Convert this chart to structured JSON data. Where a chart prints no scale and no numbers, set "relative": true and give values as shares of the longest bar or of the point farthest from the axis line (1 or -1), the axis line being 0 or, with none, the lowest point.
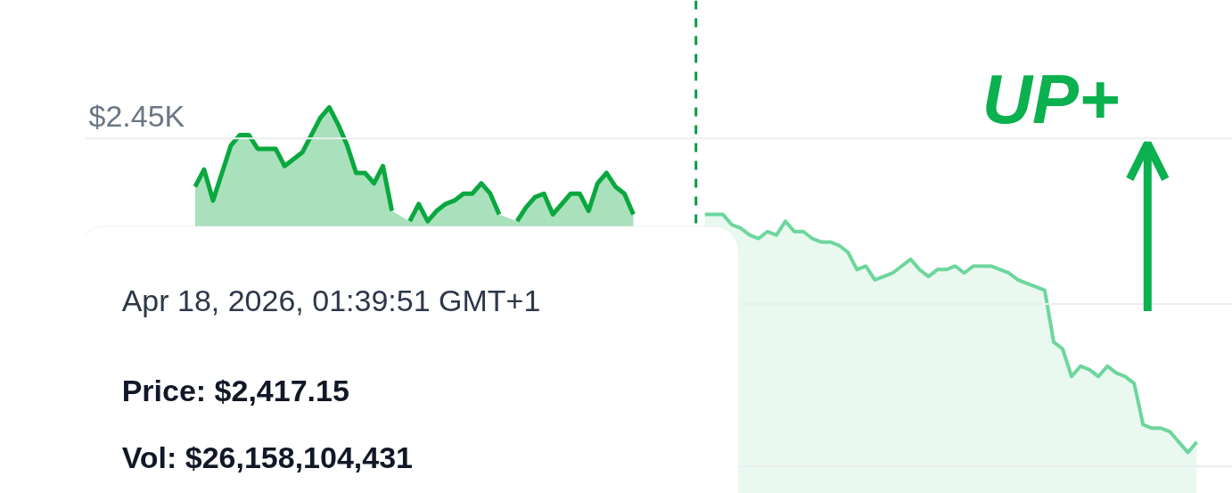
{
  "chart_data": {
    "type": "area",
    "categories": [
      null,
      null,
      null,
      null,
      null,
      null,
      null,
      null,
      null,
      null,
      null,
      null,
      null,
      null,
      null,
      null,
      null,
      null,
      null,
      null,
      null,
      null,
      null,
      null,
      null,
      null,
      null,
      null,
      null,
      null,
      null,
      null,
      null,
      null,
      null,
      null,
      null,
      null,
      null,
      null,
      null,
      null,
      null,
      null,
      null,
      null,
      null,
      null,
      null,
      null,
      null,
      null,
      null,
      null,
      null,
      null,
      null,
      null,
      null,
      null,
      null,
      null,
      null,
      null,
      null,
      null,
      null,
      null,
      null,
      null,
      null,
      null,
      null,
      null,
      null,
      null,
      null,
      null,
      null,
      null,
      null,
      null,
      null,
      null,
      null,
      null,
      null,
      null,
      null,
      null,
      null,
      null,
      null,
      null,
      null,
      null,
      null,
      null,
      null,
      null,
      null,
      null,
      null,
      null,
      null,
      null,
      null,
      null,
      null,
      null,
      null,
      null,
      null,
      null,
      null,
      null
    ],
    "relative": true,
    "series": [
      {
        "color": "#0aa83f",
        "values": [
          null,
          null,
          null,
          0.77,
          0.82,
          0.73,
          0.81,
          0.89,
          0.92,
          0.92,
          0.88,
          0.88,
          0.88,
          0.83,
          0.85,
          0.87,
          0.92,
          0.97,
          1,
          0.95,
          0.89,
          0.81,
          0.81,
          0.78,
          0.83,
          0.7,
          null,
          0.67,
          0.72,
          0.67,
          0.7,
          0.72,
          0.73,
          0.75,
          0.75,
          0.78,
          0.75,
          0.69,
          null,
          0.67,
          0.71,
          0.74,
          0.75,
          0.69,
          0.72,
          0.75,
          0.75,
          0.7,
          0.78,
          0.81,
          0.77,
          0.75,
          0.69,
          null,
          null,
          null,
          null,
          null,
          null,
          null,
          null,
          null,
          null,
          null,
          null,
          null,
          null,
          null,
          null,
          null,
          null,
          null,
          null,
          null,
          null,
          null,
          null,
          null,
          null,
          null,
          null,
          null,
          null,
          null,
          null,
          null,
          null,
          null,
          null,
          null,
          null,
          null,
          null,
          null,
          null,
          null,
          null,
          null,
          null,
          null,
          null,
          null,
          null,
          null,
          null,
          null,
          null,
          null,
          null,
          null,
          null,
          null,
          null,
          null,
          null,
          null
        ]
      },
      {
        "color": "#6dd69c",
        "values": [
          null,
          null,
          null,
          null,
          null,
          null,
          null,
          null,
          null,
          null,
          null,
          null,
          null,
          null,
          null,
          null,
          null,
          null,
          null,
          null,
          null,
          null,
          null,
          null,
          null,
          null,
          null,
          null,
          null,
          null,
          null,
          null,
          null,
          null,
          null,
          null,
          null,
          null,
          null,
          null,
          null,
          null,
          null,
          null,
          null,
          null,
          null,
          null,
          null,
          null,
          null,
          null,
          null,
          null,
          null,
          null,
          null,
          null,
          null,
          null,
          0.69,
          0.69,
          0.69,
          0.66,
          0.65,
          0.63,
          0.62,
          0.64,
          0.63,
          0.67,
          0.64,
          0.64,
          0.62,
          0.61,
          0.61,
          0.6,
          0.58,
          0.53,
          0.54,
          0.5,
          0.51,
          0.52,
          0.54,
          0.56,
          0.53,
          0.51,
          0.53,
          0.53,
          0.54,
          0.52,
          0.54,
          0.54,
          0.54,
          0.53,
          0.52,
          0.5,
          0.49,
          0.48,
          0.47,
          0.32,
          0.3,
          0.22,
          0.25,
          0.24,
          0.22,
          0.25,
          0.23,
          0.22,
          0.2,
          0.08,
          0.07,
          0.07,
          0.06,
          0.03,
          0,
          0.03
        ]
      }
    ],
    "ref_lines": [
      {
        "axis": "y",
        "value": 0.91,
        "label": "$2.45K",
        "color": "#eceef1"
      },
      {
        "axis": "y",
        "value": 0.43,
        "color": "#eceef1"
      },
      {
        "axis": "y",
        "value": -0.04,
        "color": "#eceef1"
      }
    ],
    "annotations": [
      "Apr 18, 2026, 01:39:51 GMT+1",
      "Price: $2,417.15",
      "Vol: $26,158,104,431",
      "UP+"
    ]
  }
}
